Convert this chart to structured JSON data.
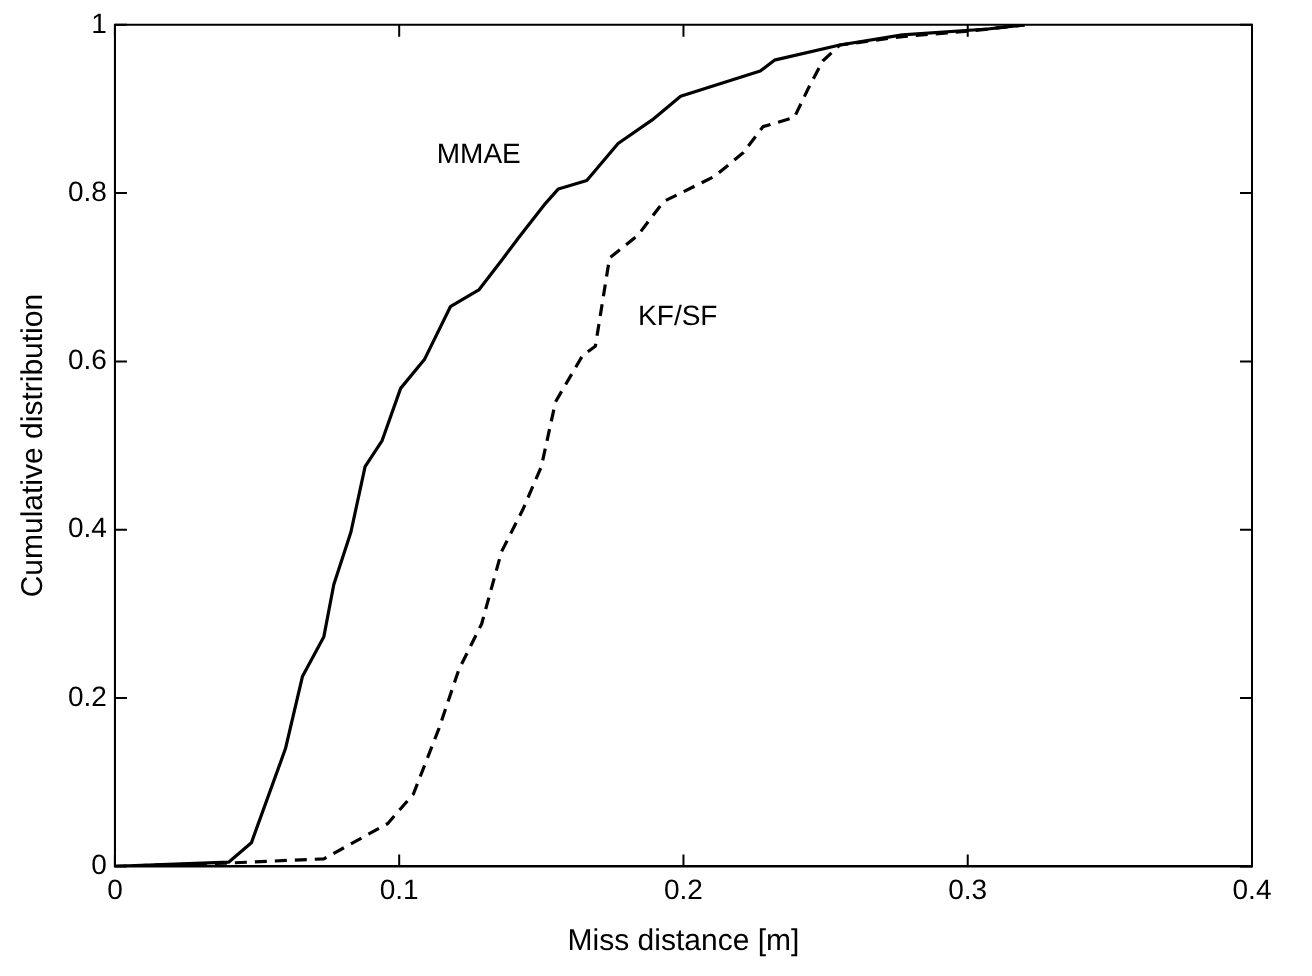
{
  "chart_data": {
    "type": "line",
    "xlabel": "Miss distance [m]",
    "ylabel": "Cumulative distribution",
    "xlim": [
      0,
      0.4
    ],
    "xticks": [
      0,
      0.1,
      0.2,
      0.3,
      0.4
    ],
    "ylim": [
      0,
      1
    ],
    "yticks": [
      0,
      0.2,
      0.4,
      0.6,
      0.8,
      1
    ],
    "grid": false,
    "legend": false,
    "marker": "none",
    "series": [
      {
        "name": "MMAE",
        "color": "#000000",
        "line_style": "solid",
        "x": [
          0,
          0.04,
          0.048,
          0.06,
          0.066,
          0.0735,
          0.077,
          0.083,
          0.088,
          0.094,
          0.1005,
          0.109,
          0.118,
          0.128,
          0.136,
          0.142,
          0.151,
          0.156,
          0.166,
          0.177,
          0.189,
          0.199,
          0.227,
          0.232,
          0.255,
          0.277,
          0.307,
          0.32
        ],
        "values": [
          0,
          0.005,
          0.028,
          0.14,
          0.226,
          0.273,
          0.335,
          0.397,
          0.475,
          0.506,
          0.568,
          0.603,
          0.665,
          0.685,
          0.72,
          0.747,
          0.786,
          0.805,
          0.815,
          0.859,
          0.887,
          0.915,
          0.945,
          0.958,
          0.976,
          0.988,
          0.995,
          1
        ]
      },
      {
        "name": "KF/SF",
        "color": "#000000",
        "line_style": "dashed",
        "x": [
          0,
          0.04,
          0.0735,
          0.096,
          0.105,
          0.114,
          0.121,
          0.129,
          0.136,
          0.1435,
          0.15,
          0.155,
          0.1645,
          0.169,
          0.174,
          0.184,
          0.193,
          0.211,
          0.221,
          0.228,
          0.239,
          0.244,
          0.249,
          0.255,
          0.277,
          0.302,
          0.32
        ],
        "values": [
          0,
          0.004,
          0.009,
          0.051,
          0.086,
          0.164,
          0.234,
          0.288,
          0.374,
          0.424,
          0.475,
          0.552,
          0.607,
          0.618,
          0.723,
          0.75,
          0.79,
          0.82,
          0.848,
          0.879,
          0.89,
          0.925,
          0.957,
          0.976,
          0.986,
          0.993,
          1
        ]
      }
    ]
  }
}
